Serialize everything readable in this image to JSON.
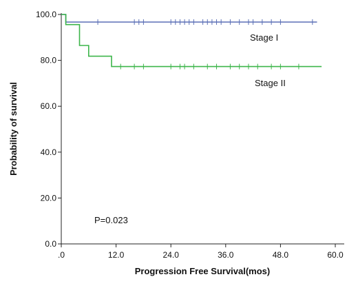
{
  "chart_data": {
    "type": "line",
    "title": "",
    "xlabel": "Progression Free Survival(mos)",
    "ylabel": "Probability of survival",
    "xlim": [
      0,
      60
    ],
    "ylim": [
      0,
      100
    ],
    "x_ticks": [
      0,
      12,
      24,
      36,
      48,
      60
    ],
    "x_tick_labels": [
      ".0",
      "12.0",
      "24.0",
      "36.0",
      "48.0",
      "60.0"
    ],
    "y_ticks": [
      0,
      20,
      40,
      60,
      80,
      100
    ],
    "y_tick_labels": [
      "0.0",
      "20.0",
      "40.0",
      "60.0",
      "80.0",
      "100.0"
    ],
    "grid": false,
    "series": [
      {
        "name": "Stage I",
        "color": "#5a6fb5",
        "steps": [
          [
            0,
            100
          ],
          [
            1,
            100
          ],
          [
            1,
            96.7
          ],
          [
            56,
            96.7
          ]
        ],
        "censored_x": [
          8,
          16,
          17,
          18,
          24,
          25,
          26,
          27,
          28,
          29,
          31,
          32,
          33,
          34,
          35,
          37,
          39,
          41,
          42,
          44,
          46,
          48,
          55
        ]
      },
      {
        "name": "Stage II",
        "color": "#3cb54a",
        "steps": [
          [
            0,
            100
          ],
          [
            1,
            100
          ],
          [
            1,
            95.6
          ],
          [
            4,
            95.6
          ],
          [
            4,
            86.5
          ],
          [
            6,
            86.5
          ],
          [
            6,
            81.8
          ],
          [
            11,
            81.8
          ],
          [
            11,
            77.3
          ],
          [
            57,
            77.3
          ]
        ],
        "censored_x": [
          13,
          16,
          18,
          24,
          26,
          27,
          29,
          32,
          34,
          37,
          39,
          41,
          43,
          46,
          48,
          52
        ]
      }
    ],
    "annotations": [
      {
        "text": "P=0.023",
        "x": 8,
        "y": 10
      }
    ]
  }
}
